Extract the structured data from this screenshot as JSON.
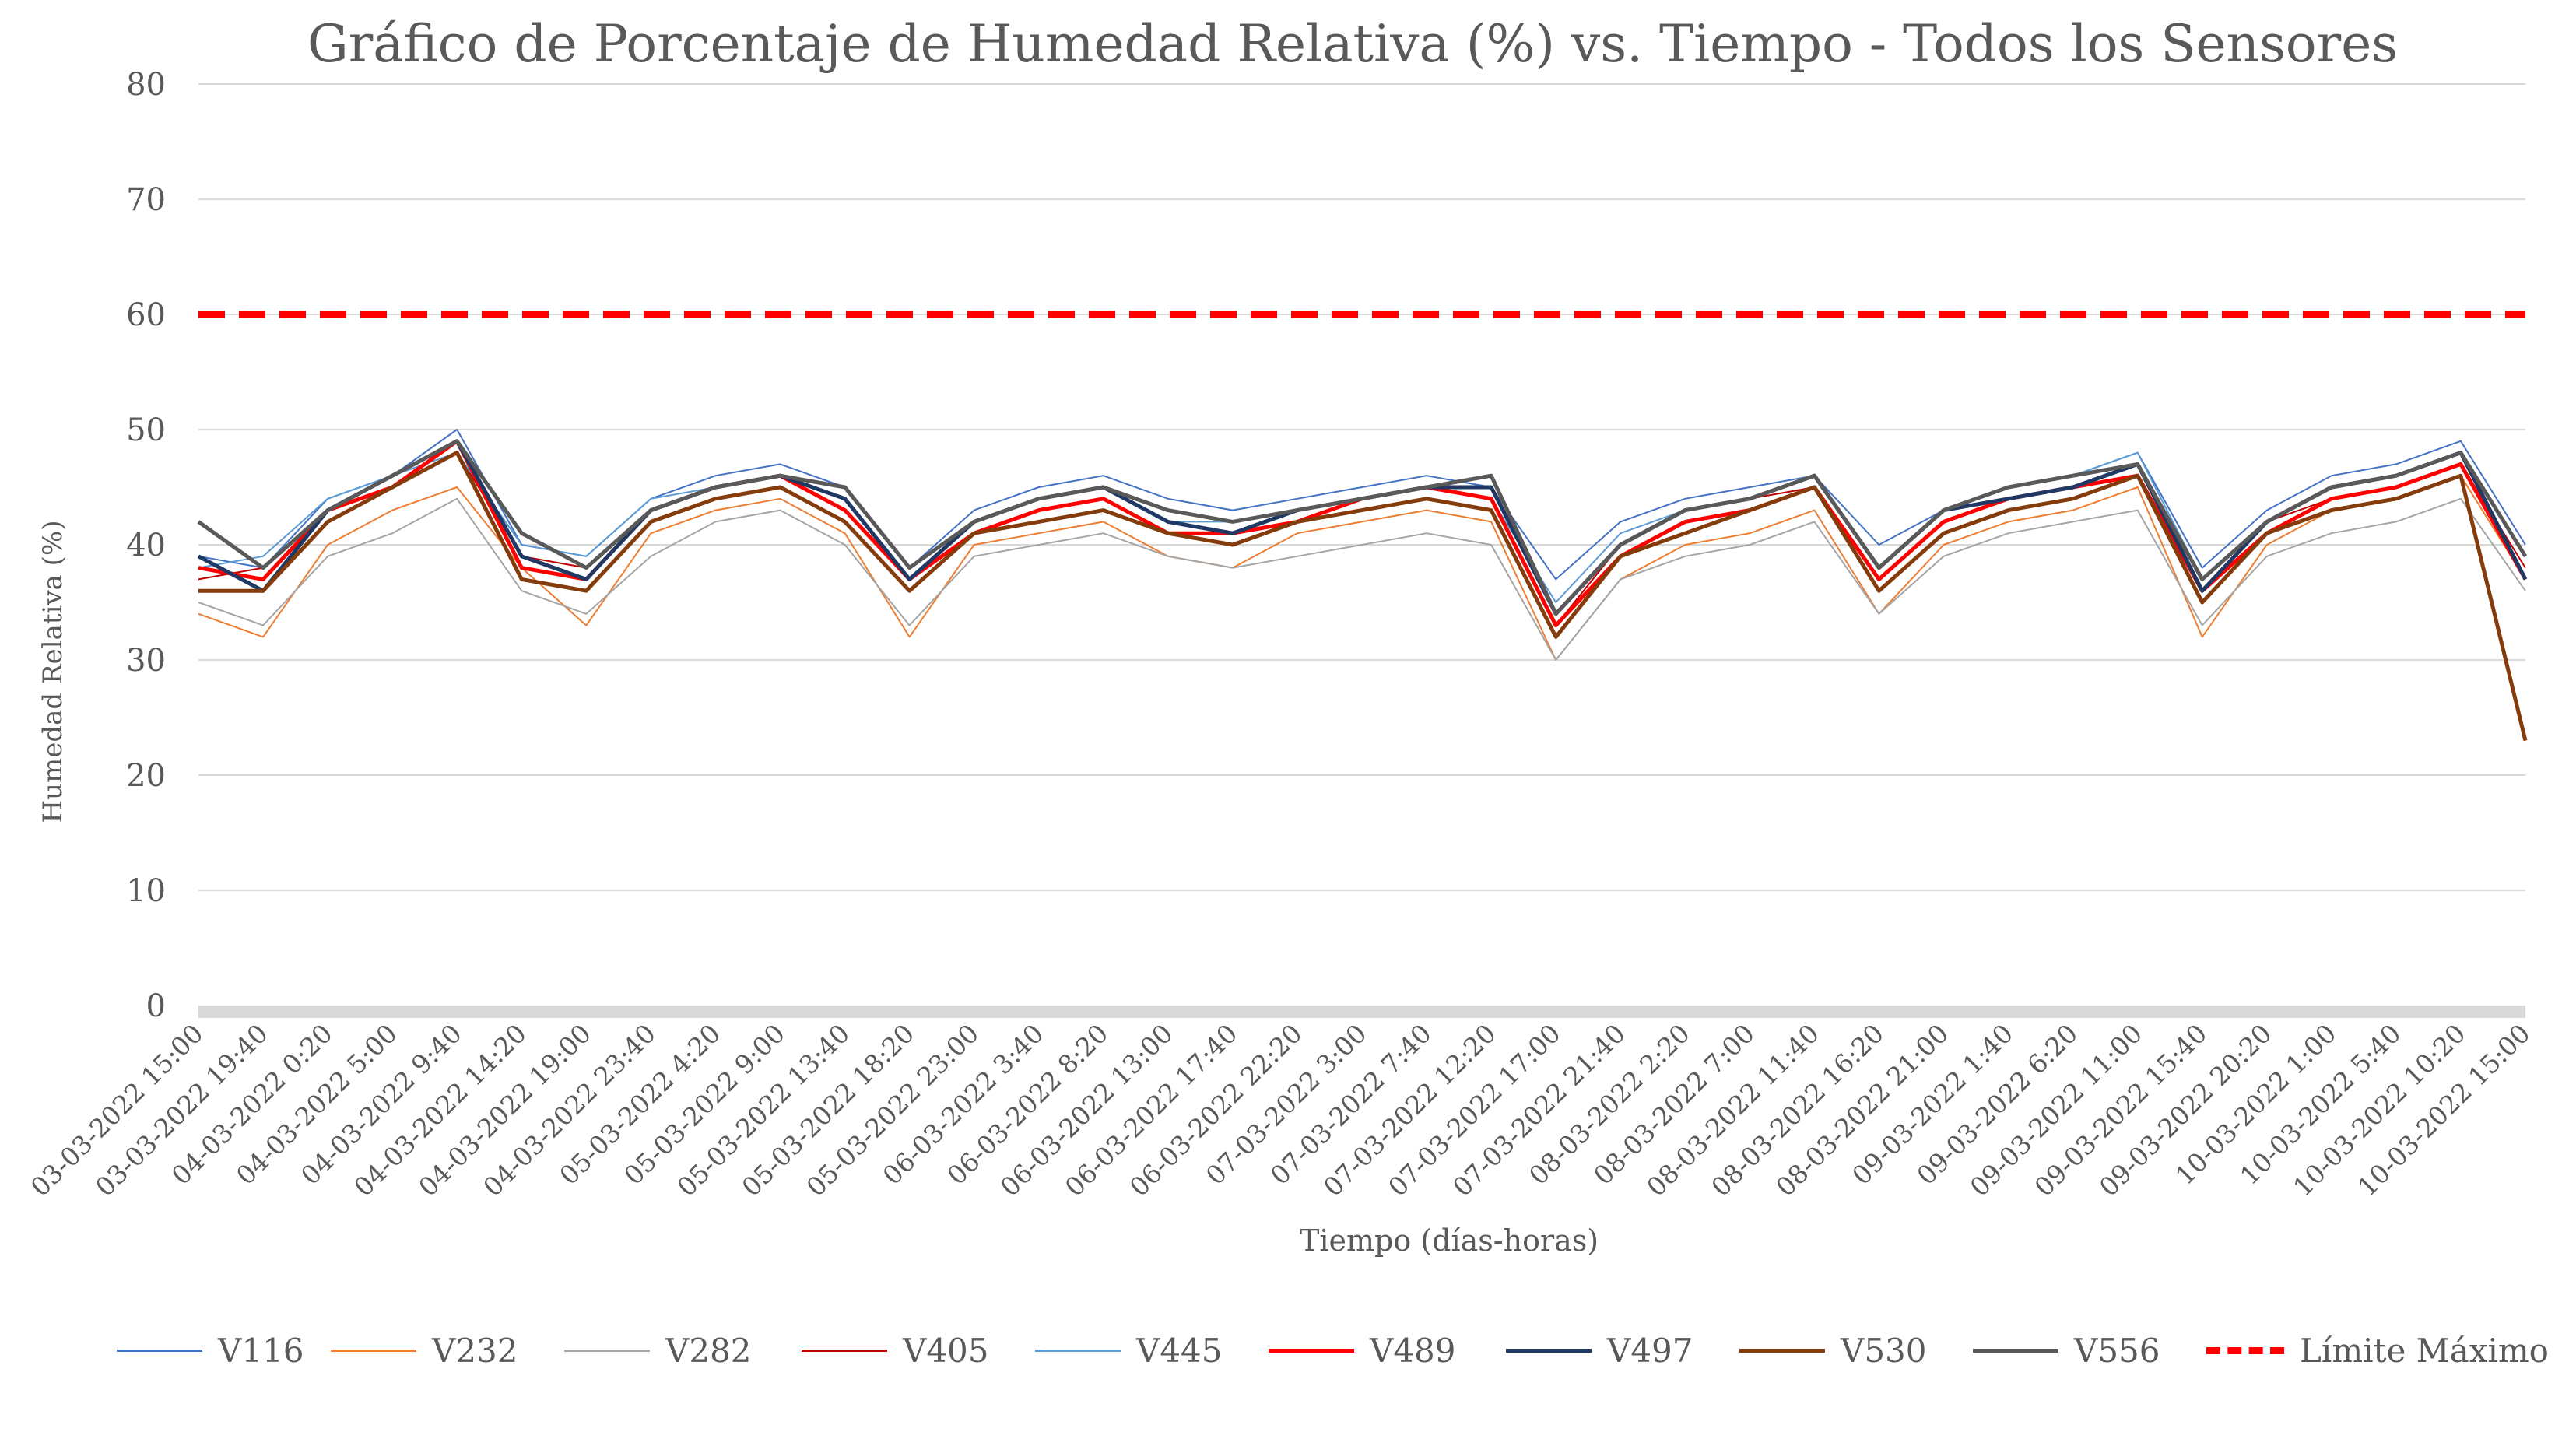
{
  "chart_data": {
    "type": "line",
    "title": "Gráfico de Porcentaje de Humedad Relativa (%) vs. Tiempo - Todos los Sensores",
    "xlabel": "Tiempo (días-horas)",
    "ylabel": "Humedad Relativa (%)",
    "ylim": [
      0,
      80
    ],
    "yticks": [
      0,
      10,
      20,
      30,
      40,
      50,
      60,
      70,
      80
    ],
    "grid": true,
    "legend_position": "bottom",
    "categories": [
      "03-03-2022 15:00",
      "03-03-2022 19:40",
      "04-03-2022 0:20",
      "04-03-2022 5:00",
      "04-03-2022 9:40",
      "04-03-2022 14:20",
      "04-03-2022 19:00",
      "04-03-2022 23:40",
      "05-03-2022 4:20",
      "05-03-2022 9:00",
      "05-03-2022 13:40",
      "05-03-2022 18:20",
      "05-03-2022 23:00",
      "06-03-2022 3:40",
      "06-03-2022 8:20",
      "06-03-2022 13:00",
      "06-03-2022 17:40",
      "06-03-2022 22:20",
      "07-03-2022 3:00",
      "07-03-2022 7:40",
      "07-03-2022 12:20",
      "07-03-2022 17:00",
      "07-03-2022 21:40",
      "08-03-2022 2:20",
      "08-03-2022 7:00",
      "08-03-2022 11:40",
      "08-03-2022 16:20",
      "08-03-2022 21:00",
      "09-03-2022 1:40",
      "09-03-2022 6:20",
      "09-03-2022 11:00",
      "09-03-2022 15:40",
      "09-03-2022 20:20",
      "10-03-2022 1:00",
      "10-03-2022 5:40",
      "10-03-2022 10:20",
      "10-03-2022 15:00"
    ],
    "series": [
      {
        "name": "V116",
        "color": "#4472c4",
        "width": 2,
        "values": [
          39,
          38,
          44,
          46,
          50,
          40,
          39,
          44,
          46,
          47,
          45,
          38,
          43,
          45,
          46,
          44,
          43,
          44,
          45,
          46,
          45,
          37,
          42,
          44,
          45,
          46,
          40,
          43,
          45,
          46,
          48,
          38,
          43,
          46,
          47,
          49,
          40
        ]
      },
      {
        "name": "V232",
        "color": "#ed7d31",
        "width": 2,
        "values": [
          34,
          32,
          40,
          43,
          45,
          38,
          33,
          41,
          43,
          44,
          41,
          32,
          40,
          41,
          42,
          39,
          38,
          41,
          42,
          43,
          42,
          30,
          37,
          40,
          41,
          43,
          34,
          40,
          42,
          43,
          45,
          32,
          40,
          43,
          44,
          46,
          37
        ]
      },
      {
        "name": "V282",
        "color": "#a5a5a5",
        "width": 2,
        "values": [
          35,
          33,
          39,
          41,
          44,
          36,
          34,
          39,
          42,
          43,
          40,
          33,
          39,
          40,
          41,
          39,
          38,
          39,
          40,
          41,
          40,
          30,
          37,
          39,
          40,
          42,
          34,
          39,
          41,
          42,
          43,
          33,
          39,
          41,
          42,
          44,
          36
        ]
      },
      {
        "name": "V405",
        "color": "#c00000",
        "width": 2,
        "values": [
          37,
          38,
          43,
          45,
          48,
          39,
          38,
          43,
          45,
          46,
          44,
          37,
          42,
          44,
          45,
          43,
          42,
          43,
          44,
          45,
          44,
          33,
          40,
          43,
          44,
          45,
          37,
          42,
          44,
          45,
          47,
          36,
          42,
          44,
          45,
          47,
          38
        ]
      },
      {
        "name": "V445",
        "color": "#5b9bd5",
        "width": 2,
        "values": [
          38,
          39,
          44,
          46,
          48,
          40,
          39,
          44,
          45,
          46,
          44,
          37,
          42,
          44,
          45,
          42,
          42,
          43,
          44,
          45,
          44,
          35,
          41,
          43,
          44,
          46,
          38,
          43,
          45,
          46,
          48,
          37,
          42,
          45,
          46,
          48,
          39
        ]
      },
      {
        "name": "V489",
        "color": "#ff0000",
        "width": 5,
        "values": [
          38,
          37,
          43,
          45,
          49,
          38,
          37,
          43,
          45,
          46,
          43,
          37,
          41,
          43,
          44,
          41,
          41,
          42,
          44,
          45,
          44,
          33,
          39,
          42,
          43,
          45,
          37,
          42,
          44,
          45,
          46,
          36,
          41,
          44,
          45,
          47,
          37
        ]
      },
      {
        "name": "V497",
        "color": "#1f3864",
        "width": 5,
        "values": [
          39,
          36,
          43,
          46,
          49,
          39,
          37,
          43,
          45,
          46,
          44,
          37,
          42,
          44,
          45,
          42,
          41,
          43,
          44,
          45,
          45,
          34,
          40,
          43,
          44,
          46,
          38,
          43,
          44,
          45,
          47,
          36,
          42,
          45,
          46,
          48,
          37
        ]
      },
      {
        "name": "V530",
        "color": "#843c0c",
        "width": 5,
        "values": [
          36,
          36,
          42,
          45,
          48,
          37,
          36,
          42,
          44,
          45,
          42,
          36,
          41,
          42,
          43,
          41,
          40,
          42,
          43,
          44,
          43,
          32,
          39,
          41,
          43,
          45,
          36,
          41,
          43,
          44,
          46,
          35,
          41,
          43,
          44,
          46,
          23
        ]
      },
      {
        "name": "V556",
        "color": "#595959",
        "width": 5,
        "values": [
          42,
          38,
          43,
          46,
          49,
          41,
          38,
          43,
          45,
          46,
          45,
          38,
          42,
          44,
          45,
          43,
          42,
          43,
          44,
          45,
          46,
          34,
          40,
          43,
          44,
          46,
          38,
          43,
          45,
          46,
          47,
          37,
          42,
          45,
          46,
          48,
          39
        ]
      },
      {
        "name": "Límite Máximo",
        "color": "#ff0000",
        "width": 9,
        "dash": true,
        "values": [
          60,
          60,
          60,
          60,
          60,
          60,
          60,
          60,
          60,
          60,
          60,
          60,
          60,
          60,
          60,
          60,
          60,
          60,
          60,
          60,
          60,
          60,
          60,
          60,
          60,
          60,
          60,
          60,
          60,
          60,
          60,
          60,
          60,
          60,
          60,
          60,
          60
        ]
      }
    ]
  }
}
